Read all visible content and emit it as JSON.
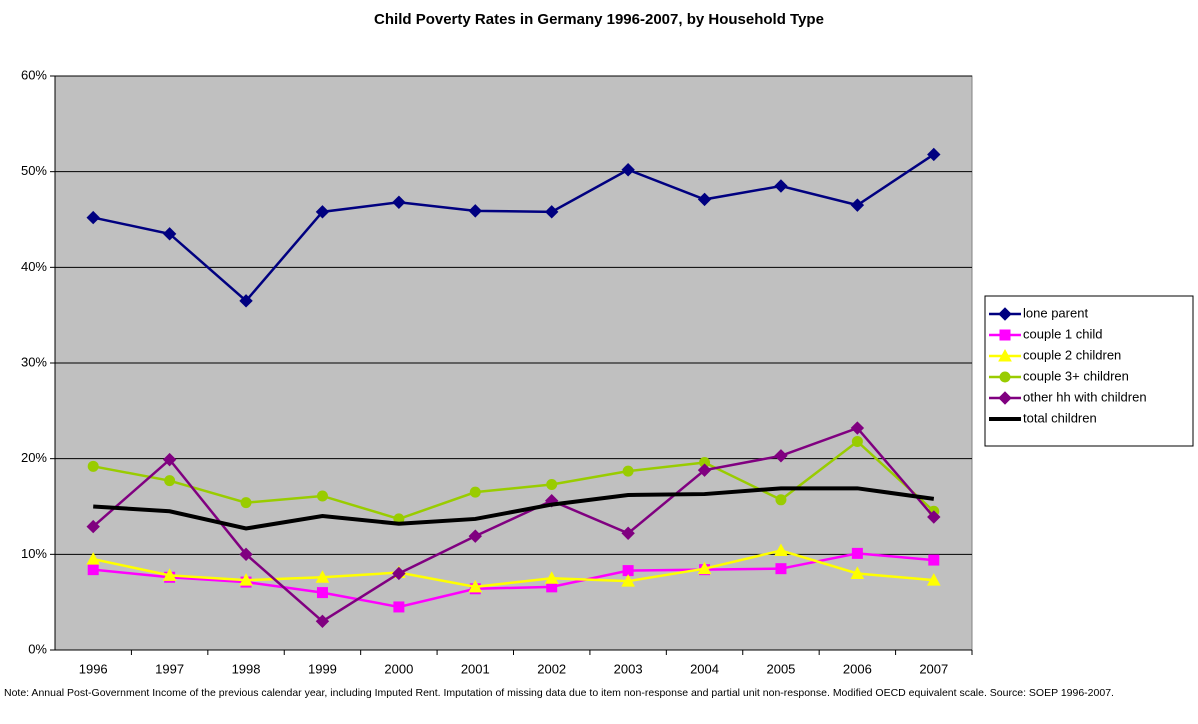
{
  "chart_data": {
    "type": "line",
    "title": "Child Poverty Rates in Germany 1996-2007, by Household Type",
    "note": "Note: Annual Post-Government Income of the previous calendar year, including Imputed Rent. Imputation of missing data due to item non-response and partial unit non-response. Modified OECD equivalent scale. Source: SOEP 1996-2007.",
    "categories": [
      "1996",
      "1997",
      "1998",
      "1999",
      "2000",
      "2001",
      "2002",
      "2003",
      "2004",
      "2005",
      "2006",
      "2007"
    ],
    "ylim": [
      0,
      60
    ],
    "yticks": [
      {
        "value": 0,
        "label": "0%"
      },
      {
        "value": 10,
        "label": "10%"
      },
      {
        "value": 20,
        "label": "20%"
      },
      {
        "value": 30,
        "label": "30%"
      },
      {
        "value": 40,
        "label": "40%"
      },
      {
        "value": 50,
        "label": "50%"
      },
      {
        "value": 60,
        "label": "60%"
      }
    ],
    "grid": true,
    "legend": "right",
    "series": [
      {
        "name": "lone parent",
        "color": "#000080",
        "marker": "diamond",
        "values": [
          45.2,
          43.5,
          36.5,
          45.8,
          46.8,
          45.9,
          45.8,
          50.2,
          47.1,
          48.5,
          46.5,
          51.8
        ]
      },
      {
        "name": "couple 1 child",
        "color": "#ff00ff",
        "marker": "square",
        "values": [
          8.4,
          7.6,
          7.1,
          6.0,
          4.5,
          6.4,
          6.6,
          8.3,
          8.4,
          8.5,
          10.1,
          9.4
        ]
      },
      {
        "name": "couple 2 children",
        "color": "#ffff00",
        "marker": "triangle",
        "values": [
          9.5,
          7.8,
          7.3,
          7.6,
          8.1,
          6.6,
          7.5,
          7.2,
          8.5,
          10.4,
          8.0,
          7.3
        ]
      },
      {
        "name": "couple 3+ children",
        "color": "#99cc00",
        "marker": "circle",
        "values": [
          19.2,
          17.7,
          15.4,
          16.1,
          13.7,
          16.5,
          17.3,
          18.7,
          19.6,
          15.7,
          21.8,
          14.5
        ]
      },
      {
        "name": "other hh with children",
        "color": "#800080",
        "marker": "diamond",
        "values": [
          12.9,
          19.9,
          10.0,
          3.0,
          8.0,
          11.9,
          15.6,
          12.2,
          18.8,
          20.3,
          23.2,
          13.9
        ]
      },
      {
        "name": "total children",
        "color": "#000000",
        "marker": "none",
        "values": [
          15.0,
          14.5,
          12.7,
          14.0,
          13.2,
          13.7,
          15.2,
          16.2,
          16.3,
          16.9,
          16.9,
          15.8
        ]
      }
    ]
  }
}
